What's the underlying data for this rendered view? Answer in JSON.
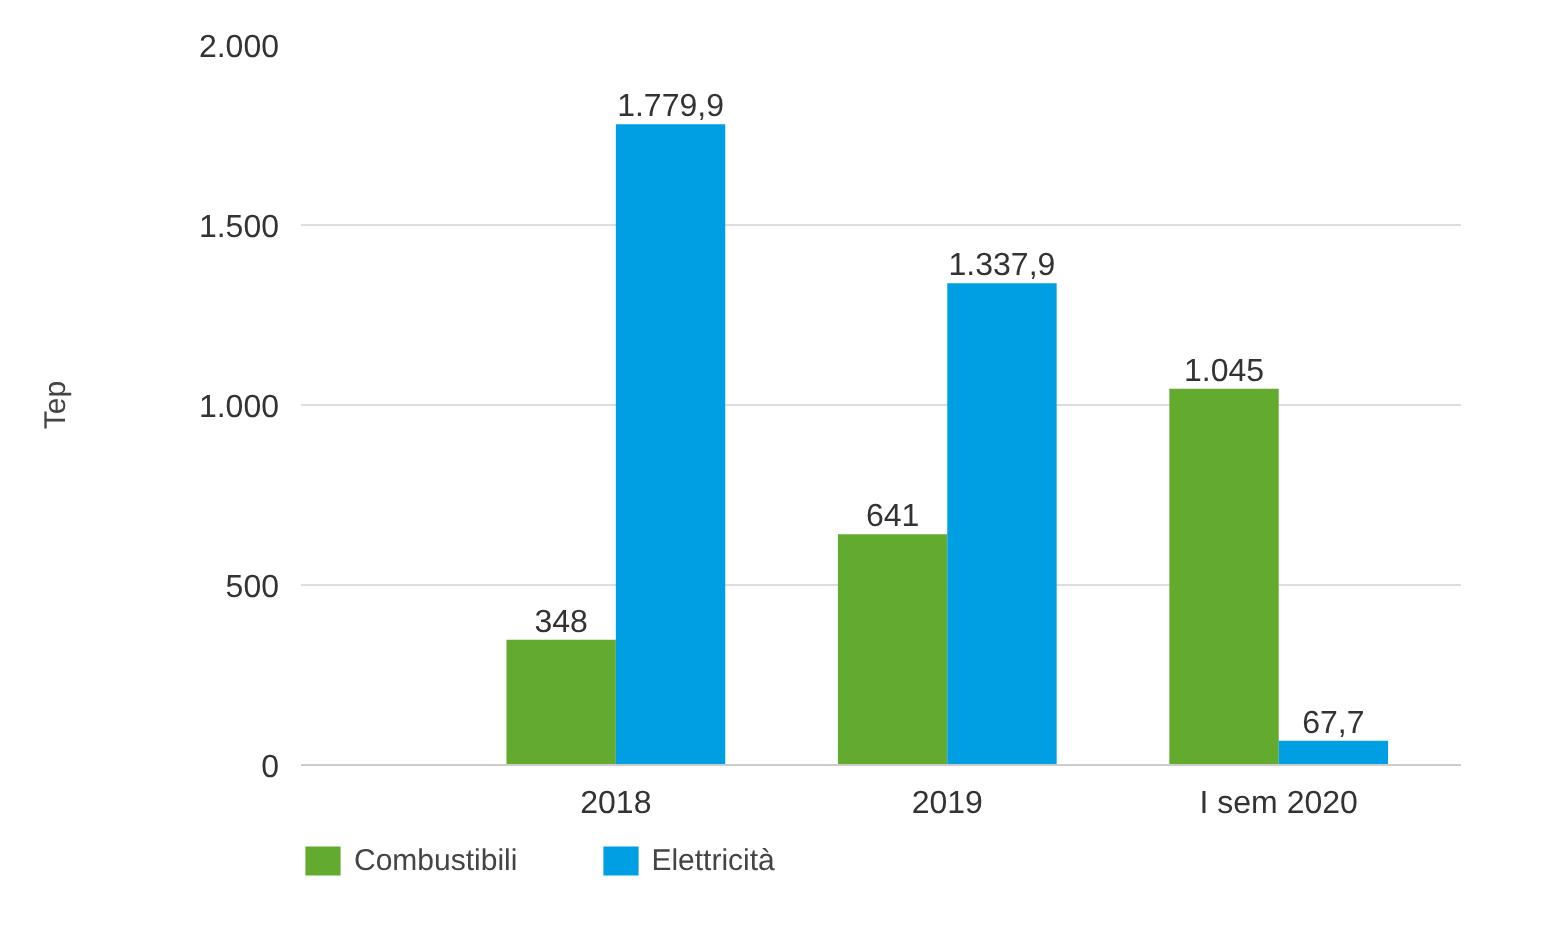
{
  "chart_data": {
    "type": "bar",
    "ylabel": "Tep",
    "categories": [
      "2018",
      "2019",
      "I sem 2020"
    ],
    "series": [
      {
        "name": "Combustibili",
        "color": "#62ab2f",
        "values": [
          348,
          641,
          1045
        ],
        "value_labels": [
          "348",
          "641",
          "1.045"
        ]
      },
      {
        "name": "Elettricità",
        "color": "#009fe3",
        "values": [
          1779.9,
          1337.9,
          67.7
        ],
        "value_labels": [
          "1.779,9",
          "1.337,9",
          "67,7"
        ]
      }
    ],
    "ylim": [
      0,
      2000
    ],
    "yticks": [
      {
        "value": 0,
        "label": "0"
      },
      {
        "value": 500,
        "label": "500"
      },
      {
        "value": 1000,
        "label": "1.000"
      },
      {
        "value": 1500,
        "label": "1.500"
      },
      {
        "value": 2000,
        "label": "2.000"
      }
    ],
    "grid": "y",
    "legend": "bottom left"
  }
}
